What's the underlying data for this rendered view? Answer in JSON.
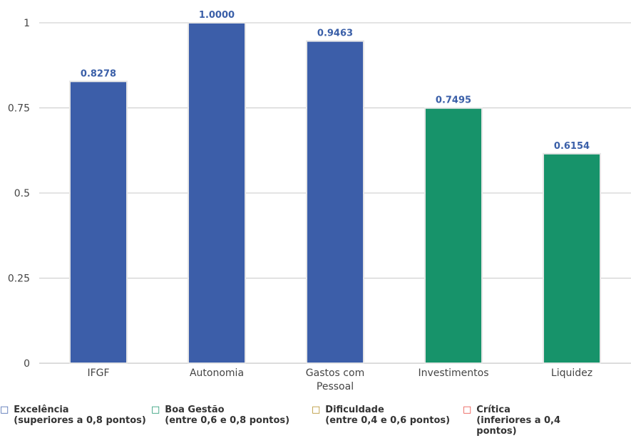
{
  "chart_data": {
    "type": "bar",
    "categories": [
      "IFGF",
      "Autonomia",
      "Gastos com Pessoal",
      "Investimentos",
      "Liquidez"
    ],
    "category_lines": [
      [
        "IFGF"
      ],
      [
        "Autonomia"
      ],
      [
        "Gastos com",
        "Pessoal"
      ],
      [
        "Investimentos"
      ],
      [
        "Liquidez"
      ]
    ],
    "values": [
      0.8278,
      1.0,
      0.9463,
      0.7495,
      0.6154
    ],
    "value_labels": [
      "0.8278",
      "1.0000",
      "0.9463",
      "0.7495",
      "0.6154"
    ],
    "bar_colors": [
      "#3c5ea9",
      "#3c5ea9",
      "#3c5ea9",
      "#17936a",
      "#17936a"
    ],
    "ylim": [
      0,
      1
    ],
    "yticks": [
      0,
      0.25,
      0.5,
      0.75,
      1
    ],
    "ytick_labels": [
      "0",
      "0.25",
      "0.5",
      "0.75",
      "1"
    ],
    "grid": true,
    "legend_position": "bottom"
  },
  "legend": [
    {
      "marker": "□",
      "color": "#3c5ea9",
      "title": "Excelência",
      "detail": "(superiores a 0,8 pontos)",
      "detail2": ""
    },
    {
      "marker": "□",
      "color": "#17936a",
      "title": "Boa Gestão",
      "detail": "(entre 0,6 e 0,8 pontos)",
      "detail2": ""
    },
    {
      "marker": "□",
      "color": "#b08a1e",
      "title": "Dificuldade",
      "detail": "(entre 0,4 e 0,6 pontos)",
      "detail2": ""
    },
    {
      "marker": "□",
      "color": "#e8453c",
      "title": "Crítica",
      "detail": "(inferiores a 0,4",
      "detail2": "pontos)"
    }
  ]
}
